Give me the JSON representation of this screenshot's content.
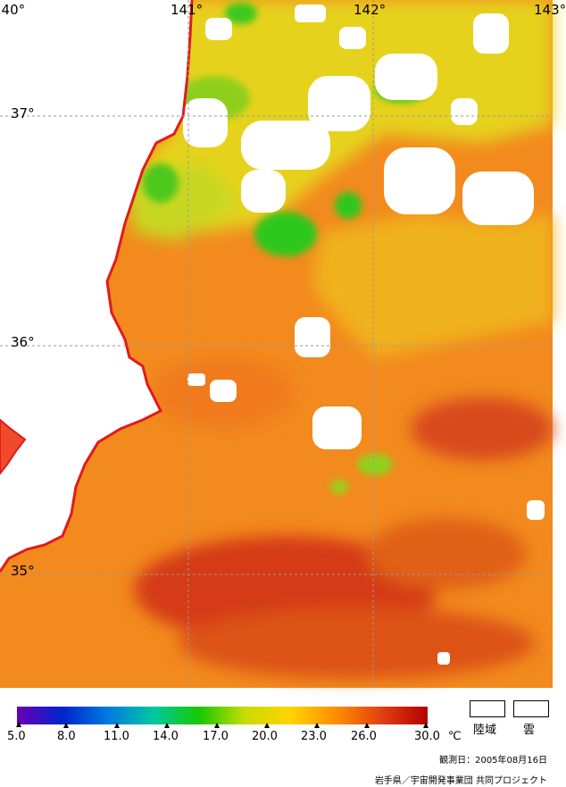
{
  "map": {
    "longitude_labels": [
      "140°",
      "141°",
      "142°",
      "143°"
    ],
    "latitude_labels": [
      "37°",
      "36°",
      "35°"
    ],
    "colors": {
      "coast": "#e11b1b",
      "grid": "#9a9a9a",
      "land": "#ffffff",
      "cloud": "#ffffff"
    }
  },
  "colorbar": {
    "ticks": [
      "5.0",
      "8.0",
      "11.0",
      "14.0",
      "17.0",
      "20.0",
      "23.0",
      "26.0",
      "30.0"
    ],
    "unit": "℃",
    "stops": [
      "#6a00b4",
      "#0024cc",
      "#007be0",
      "#00c8a0",
      "#18c800",
      "#c8dc00",
      "#ffd400",
      "#ff8c00",
      "#e04010",
      "#b40000"
    ]
  },
  "legend": {
    "land_label": "陸域",
    "cloud_label": "雲"
  },
  "observation_date": "観測日：2005年08月16日",
  "credit": "岩手県／宇宙開発事業団 共同プロジェクト"
}
